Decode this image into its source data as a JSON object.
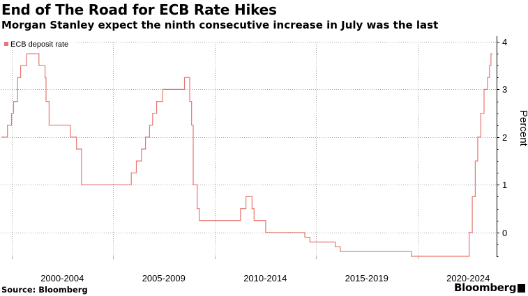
{
  "header": {
    "title": "End of The Road for ECB Rate Hikes",
    "subtitle": "Morgan Stanley expect the ninth consecutive increase in July was the last"
  },
  "footer": {
    "source": "Source: Bloomberg",
    "brand": "Bloomberg"
  },
  "colors": {
    "series": "#e8766f",
    "grid": "#a6a6a6",
    "axis": "#000000",
    "text": "#000000"
  },
  "chart_data": {
    "type": "line",
    "title": "End of The Road for ECB Rate Hikes",
    "subtitle": "Morgan Stanley expect the ninth consecutive increase in July was the last",
    "xlabel": "",
    "ylabel": "Percent",
    "y_axis_side": "right",
    "ylim": [
      -0.5,
      4
    ],
    "yticks": [
      0,
      1,
      2,
      3,
      4
    ],
    "ytick_labels": [
      "0",
      "1",
      "2",
      "3",
      "4"
    ],
    "xlim": [
      1999.5,
      2023.9
    ],
    "x_category_labels": [
      "2000-2004",
      "2005-2009",
      "2010-2014",
      "2015-2019",
      "2020-2024"
    ],
    "x_category_centers": [
      2002.5,
      2007.5,
      2012.5,
      2017.5,
      2022.5
    ],
    "x_minor_ticks": [
      2000,
      2005,
      2010,
      2015,
      2020
    ],
    "grid": true,
    "legend": {
      "position": "top-left",
      "entries": [
        "ECB deposit rate"
      ]
    },
    "series": [
      {
        "name": "ECB deposit rate",
        "step": true,
        "points": [
          [
            1999.5,
            2.0
          ],
          [
            1999.8,
            2.25
          ],
          [
            2000.0,
            2.5
          ],
          [
            2000.1,
            2.75
          ],
          [
            2000.3,
            3.25
          ],
          [
            2000.45,
            3.5
          ],
          [
            2000.75,
            3.75
          ],
          [
            2001.35,
            3.5
          ],
          [
            2001.65,
            3.25
          ],
          [
            2001.7,
            2.75
          ],
          [
            2001.85,
            2.25
          ],
          [
            2002.9,
            2.0
          ],
          [
            2003.2,
            1.75
          ],
          [
            2003.45,
            1.0
          ],
          [
            2005.9,
            1.25
          ],
          [
            2006.15,
            1.5
          ],
          [
            2006.4,
            1.75
          ],
          [
            2006.6,
            2.0
          ],
          [
            2006.8,
            2.25
          ],
          [
            2006.95,
            2.5
          ],
          [
            2007.15,
            2.75
          ],
          [
            2007.45,
            3.0
          ],
          [
            2008.52,
            3.25
          ],
          [
            2008.78,
            2.75
          ],
          [
            2008.87,
            2.25
          ],
          [
            2008.95,
            1.0
          ],
          [
            2009.15,
            0.5
          ],
          [
            2009.25,
            0.25
          ],
          [
            2011.28,
            0.5
          ],
          [
            2011.55,
            0.75
          ],
          [
            2011.85,
            0.5
          ],
          [
            2011.95,
            0.25
          ],
          [
            2012.52,
            0.0
          ],
          [
            2014.45,
            -0.1
          ],
          [
            2014.7,
            -0.2
          ],
          [
            2015.95,
            -0.3
          ],
          [
            2016.2,
            -0.4
          ],
          [
            2019.7,
            -0.5
          ],
          [
            2022.55,
            0.0
          ],
          [
            2022.7,
            0.75
          ],
          [
            2022.85,
            1.5
          ],
          [
            2022.97,
            2.0
          ],
          [
            2023.12,
            2.5
          ],
          [
            2023.28,
            3.0
          ],
          [
            2023.45,
            3.25
          ],
          [
            2023.55,
            3.5
          ],
          [
            2023.62,
            3.75
          ],
          [
            2023.7,
            3.75
          ]
        ]
      }
    ]
  }
}
